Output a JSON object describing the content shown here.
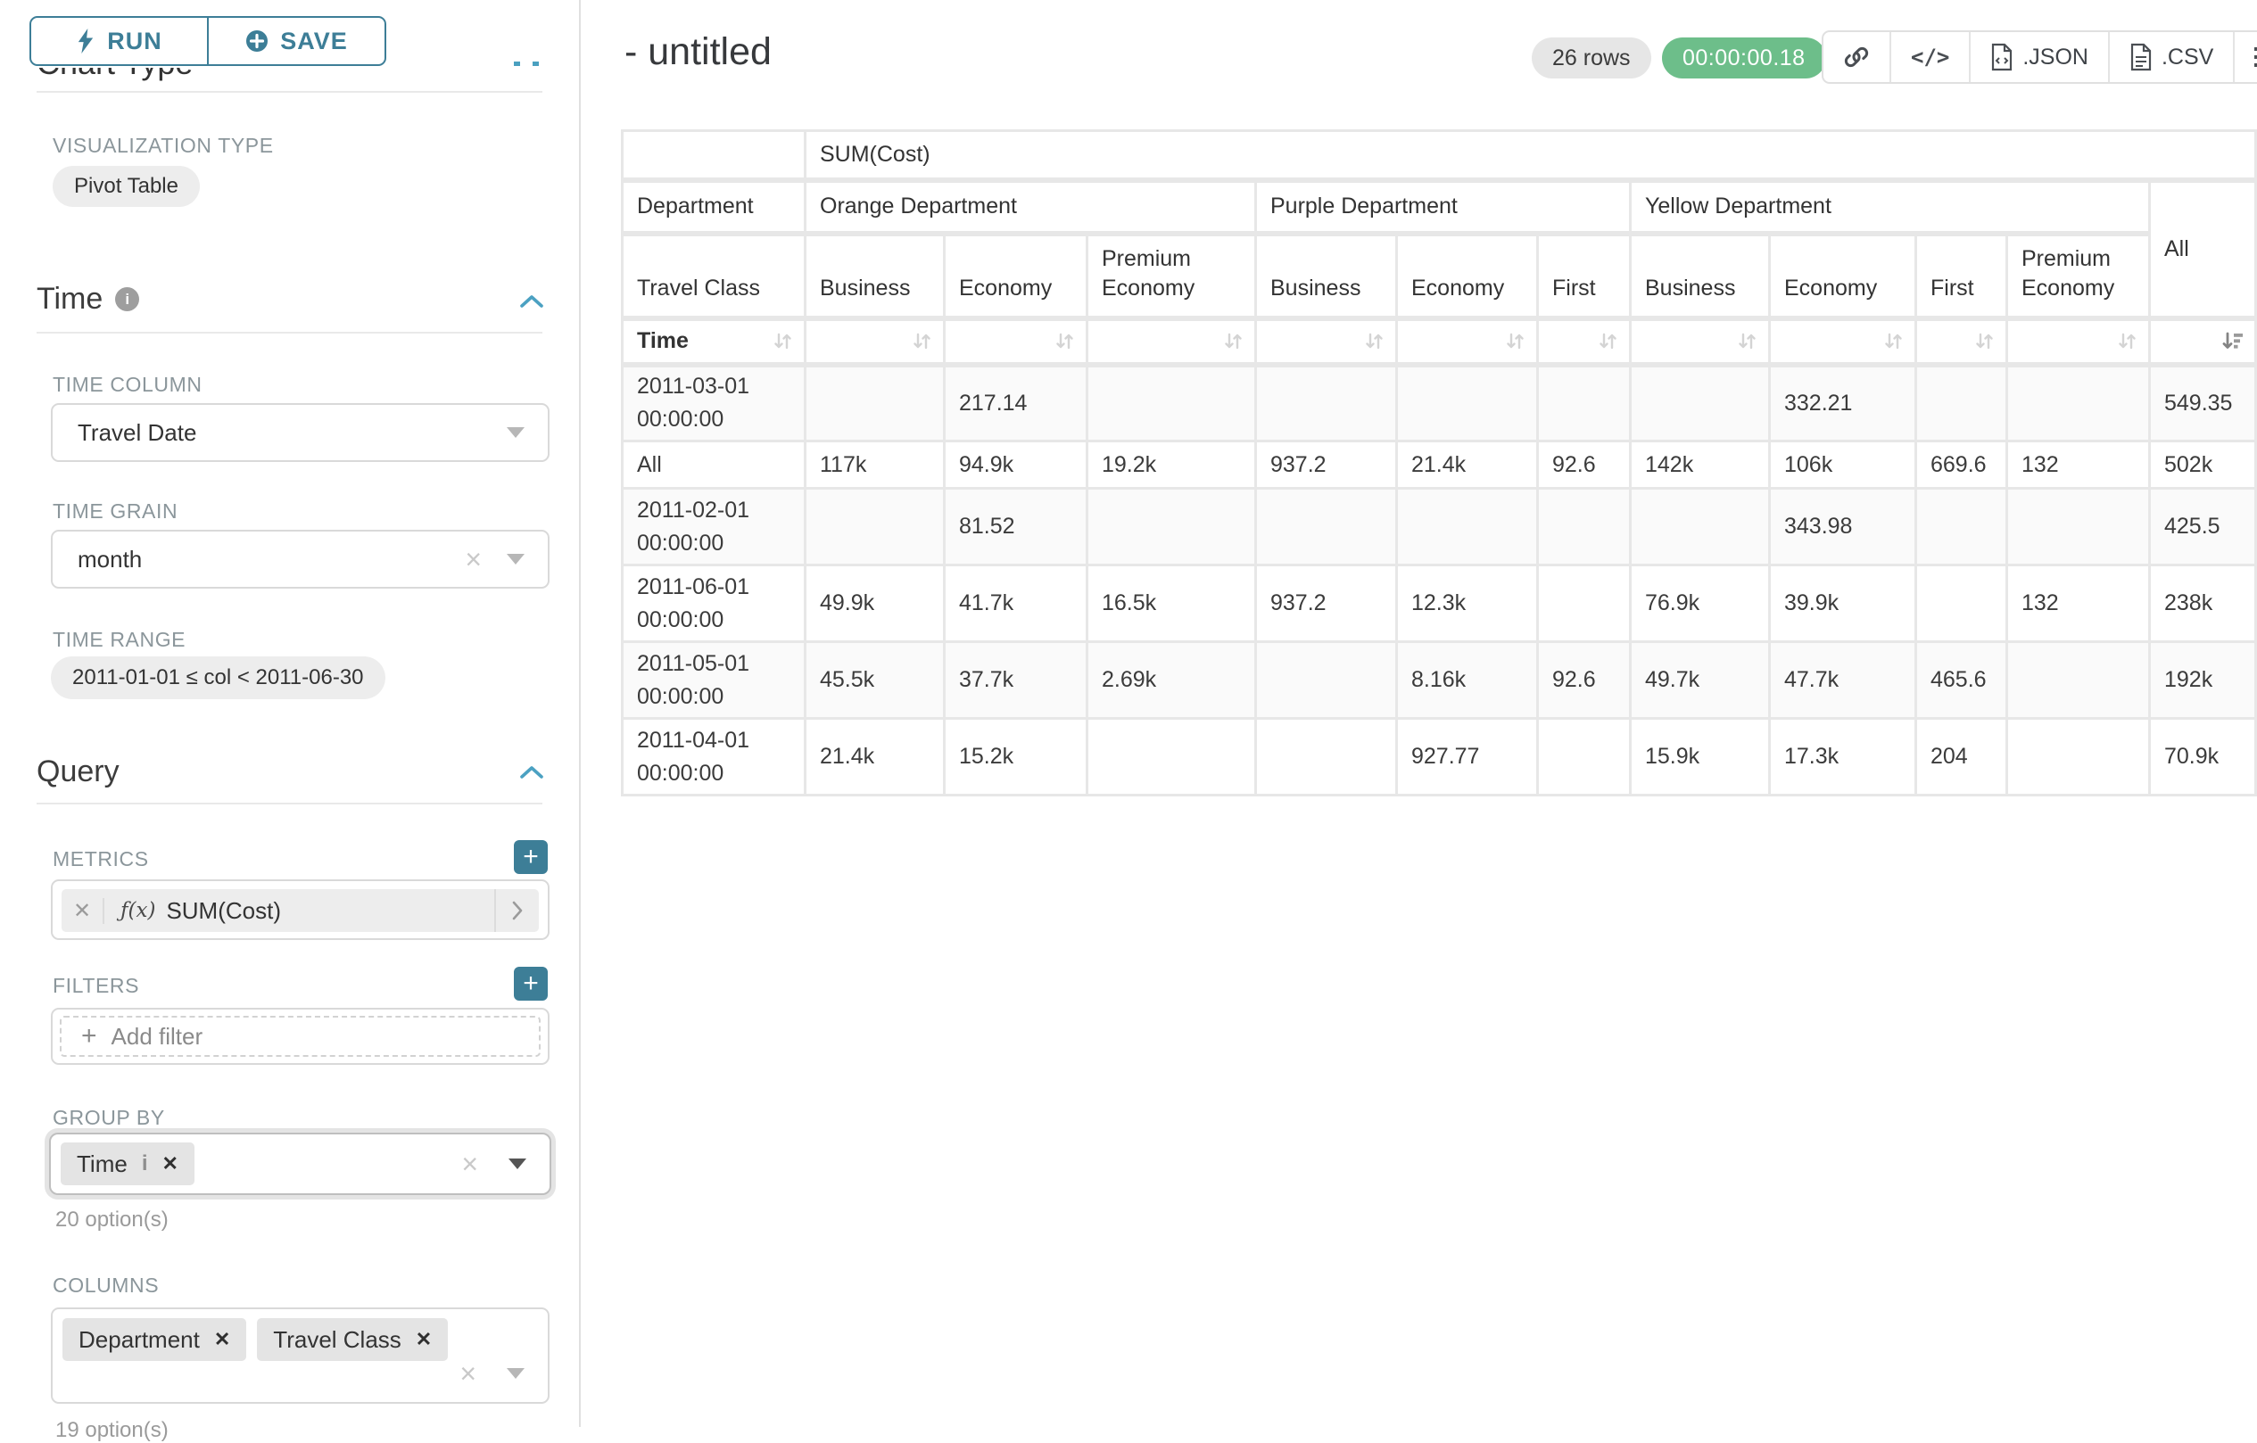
{
  "sidebar": {
    "run_button": "RUN",
    "save_button": "SAVE",
    "chart_type_heading": "Chart Type",
    "visualization_type_label": "VISUALIZATION TYPE",
    "visualization_type_value": "Pivot Table",
    "time_section": {
      "title": "Time",
      "time_column_label": "TIME COLUMN",
      "time_column_value": "Travel Date",
      "time_grain_label": "TIME GRAIN",
      "time_grain_value": "month",
      "time_range_label": "TIME RANGE",
      "time_range_value": "2011-01-01 ≤ col < 2011-06-30"
    },
    "query_section": {
      "title": "Query",
      "metrics_label": "METRICS",
      "metric_fx": "ƒ(x)",
      "metric_value": "SUM(Cost)",
      "filters_label": "FILTERS",
      "add_filter_label": "Add filter",
      "group_by_label": "GROUP BY",
      "group_by_tokens": [
        "Time"
      ],
      "group_by_options_note": "20 option(s)",
      "columns_label": "COLUMNS",
      "columns_tokens": [
        "Department",
        "Travel Class"
      ],
      "columns_options_note": "19 option(s)"
    }
  },
  "header": {
    "title": "- untitled",
    "row_count": "26 rows",
    "timer": "00:00:00.18",
    "export_json_label": ".JSON",
    "export_csv_label": ".CSV"
  },
  "pivot": {
    "metric_header": "SUM(Cost)",
    "department_label": "Department",
    "travel_class_label": "Travel Class",
    "time_label": "Time",
    "all_label": "All",
    "groups": [
      {
        "label": "Orange Department",
        "classes": [
          "Business",
          "Economy",
          "Premium Economy"
        ]
      },
      {
        "label": "Purple Department",
        "classes": [
          "Business",
          "Economy",
          "First"
        ]
      },
      {
        "label": "Yellow Department",
        "classes": [
          "Business",
          "Economy",
          "First",
          "Premium Economy"
        ]
      }
    ],
    "rows": [
      {
        "label": "2011-03-01 00:00:00",
        "values": [
          "",
          "217.14",
          "",
          "",
          "",
          "",
          "",
          "332.21",
          "",
          "",
          "549.35"
        ]
      },
      {
        "label": "All",
        "values": [
          "117k",
          "94.9k",
          "19.2k",
          "937.2",
          "21.4k",
          "92.6",
          "142k",
          "106k",
          "669.6",
          "132",
          "502k"
        ]
      },
      {
        "label": "2011-02-01 00:00:00",
        "values": [
          "",
          "81.52",
          "",
          "",
          "",
          "",
          "",
          "343.98",
          "",
          "",
          "425.5"
        ]
      },
      {
        "label": "2011-06-01 00:00:00",
        "values": [
          "49.9k",
          "41.7k",
          "16.5k",
          "937.2",
          "12.3k",
          "",
          "76.9k",
          "39.9k",
          "",
          "132",
          "238k"
        ]
      },
      {
        "label": "2011-05-01 00:00:00",
        "values": [
          "45.5k",
          "37.7k",
          "2.69k",
          "",
          "8.16k",
          "92.6",
          "49.7k",
          "47.7k",
          "465.6",
          "",
          "192k"
        ]
      },
      {
        "label": "2011-04-01 00:00:00",
        "values": [
          "21.4k",
          "15.2k",
          "",
          "",
          "927.77",
          "",
          "15.9k",
          "17.3k",
          "204",
          "",
          "70.9k"
        ]
      }
    ]
  }
}
